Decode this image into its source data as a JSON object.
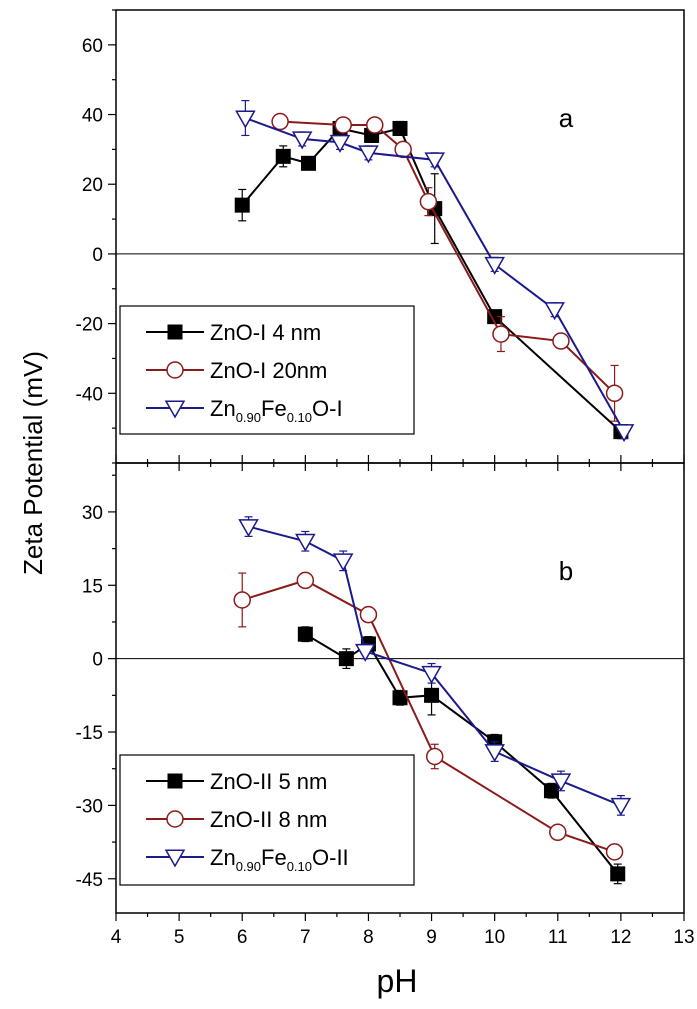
{
  "figure": {
    "ylabel": "Zeta Potential (mV)",
    "xlabel": "pH",
    "colors": {
      "black": "#000000",
      "red": "#8B1A1A",
      "blue": "#1A1A8B"
    }
  },
  "chart_data": [
    {
      "type": "line",
      "panel_label": "a",
      "xlabel": "pH",
      "ylabel": "Zeta Potential (mV)",
      "xlim": [
        4,
        13
      ],
      "ylim": [
        -60,
        70
      ],
      "xticks": [
        "4",
        "5",
        "6",
        "7",
        "8",
        "9",
        "10",
        "11",
        "12",
        "13"
      ],
      "yticks": [
        -40,
        -20,
        0,
        20,
        40,
        60
      ],
      "ytick_labels": [
        "-40",
        "-20",
        "0",
        "20",
        "40",
        "60"
      ],
      "zero_line": true,
      "legend_position": "bottom-left",
      "series": [
        {
          "name": "ZnO-I 4 nm",
          "marker": "filled-square",
          "color": "#000000",
          "x": [
            6.0,
            6.65,
            7.05,
            7.55,
            8.05,
            8.5,
            9.05,
            10.0,
            12.0
          ],
          "y": [
            14,
            28,
            26,
            36,
            34,
            36,
            13,
            -18,
            -51
          ],
          "err": [
            4.5,
            3,
            1.5,
            1.5,
            2,
            2,
            10,
            1.5,
            2
          ]
        },
        {
          "name": "ZnO-I 20nm",
          "marker": "open-circle",
          "color": "#8B1A1A",
          "x": [
            6.6,
            7.6,
            8.1,
            8.55,
            8.95,
            10.1,
            11.05,
            11.9
          ],
          "y": [
            38,
            37,
            37,
            30,
            15,
            -23,
            -25,
            -40
          ],
          "err": [
            2,
            2,
            2,
            2,
            4,
            5,
            2,
            8
          ]
        },
        {
          "name": "Zn0.90Fe0.10O-I",
          "name_parts": [
            "Zn",
            "0.90",
            "Fe",
            "0.10",
            "O-I"
          ],
          "marker": "open-triangle-down",
          "color": "#1A1A8B",
          "x": [
            6.05,
            6.95,
            7.55,
            8.0,
            9.05,
            10.0,
            10.95,
            12.05
          ],
          "y": [
            39,
            33,
            32,
            29,
            27,
            -3,
            -16,
            -51
          ],
          "err": [
            5,
            2,
            2,
            2,
            2,
            2,
            2,
            2
          ]
        }
      ]
    },
    {
      "type": "line",
      "panel_label": "b",
      "xlabel": "pH",
      "ylabel": "Zeta Potential (mV)",
      "xlim": [
        4,
        13
      ],
      "ylim": [
        -52,
        40
      ],
      "xticks": [
        "4",
        "5",
        "6",
        "7",
        "8",
        "9",
        "10",
        "11",
        "12",
        "13"
      ],
      "yticks": [
        -45,
        -30,
        -15,
        0,
        15,
        30
      ],
      "ytick_labels": [
        "-45",
        "-30",
        "-15",
        "0",
        "15",
        "30"
      ],
      "zero_line": true,
      "legend_position": "bottom-left",
      "series": [
        {
          "name": "ZnO-II 5 nm",
          "marker": "filled-square",
          "color": "#000000",
          "x": [
            7.0,
            7.65,
            8.0,
            8.5,
            9.0,
            10.0,
            10.9,
            11.95
          ],
          "y": [
            5,
            0,
            3,
            -8,
            -7.5,
            -17,
            -27,
            -44
          ],
          "err": [
            1.5,
            2,
            1.5,
            1.5,
            4,
            1.5,
            1.5,
            2
          ]
        },
        {
          "name": "ZnO-II 8 nm",
          "marker": "open-circle",
          "color": "#8B1A1A",
          "x": [
            6.0,
            7.0,
            8.0,
            9.05,
            11.0,
            11.9
          ],
          "y": [
            12,
            16,
            9,
            -20,
            -35.5,
            -39.5
          ],
          "err": [
            5.5,
            1.5,
            1.5,
            2.5,
            1.5,
            1.5
          ]
        },
        {
          "name": "Zn0.90Fe0.10O-II",
          "name_parts": [
            "Zn",
            "0.90",
            "Fe",
            "0.10",
            "O-II"
          ],
          "marker": "open-triangle-down",
          "color": "#1A1A8B",
          "x": [
            6.1,
            7.0,
            7.6,
            7.95,
            9.0,
            10.0,
            11.05,
            12.0
          ],
          "y": [
            27,
            24,
            20,
            1.5,
            -3,
            -19,
            -25,
            -30
          ],
          "err": [
            2,
            2,
            2,
            1.5,
            2,
            2,
            2,
            2
          ]
        }
      ]
    }
  ]
}
